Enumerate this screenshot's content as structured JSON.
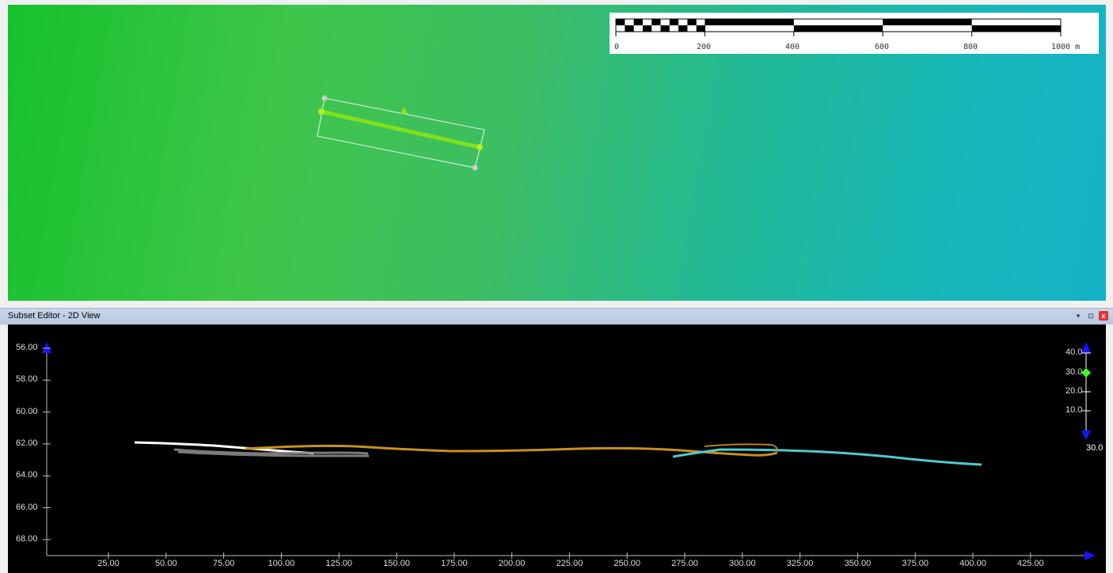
{
  "scale_bar": {
    "labels": [
      "0",
      "200",
      "400",
      "600",
      "800",
      "1000 m"
    ]
  },
  "subset_editor": {
    "title": "Subset Editor - 2D View",
    "controls": {
      "pin": "▾",
      "dock": "⊡",
      "close": "x"
    }
  },
  "profile_view": {
    "y_axis_labels": [
      "56.00",
      "58.00",
      "60.00",
      "62.00",
      "64.00",
      "66.00",
      "68.00"
    ],
    "x_axis_labels": [
      "25.00",
      "50.00",
      "75.00",
      "100.00",
      "125.00",
      "150.00",
      "175.00",
      "200.00",
      "225.00",
      "250.00",
      "275.00",
      "300.00",
      "325.00",
      "350.00",
      "375.00",
      "400.00",
      "425.00"
    ],
    "right_scale_labels": [
      "40.0",
      "30.0",
      "20.0",
      "10.0"
    ],
    "right_scale_selected": 30.0,
    "right_scale_bottom_value": "30.0"
  },
  "colors": {
    "map_green": "#16c12c",
    "map_cyan": "#14b2c6",
    "profile_orange": "#c8901e",
    "profile_cyan": "#4fc9cf",
    "profile_white": "#ffffff",
    "profile_gray": "#888888",
    "axis_arrow": "#1414ff",
    "selected_handle": "#3cff1e"
  }
}
